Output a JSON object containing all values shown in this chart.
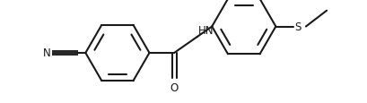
{
  "bg_color": "#ffffff",
  "line_color": "#1a1a1a",
  "lw": 1.5,
  "fs": 8.5,
  "figsize": [
    4.1,
    1.16
  ],
  "dpi": 100,
  "r1cx": 0.285,
  "r1cy": 0.5,
  "r1r": 0.19,
  "r2cx": 0.7,
  "r2cy": 0.46,
  "r2r": 0.19,
  "labels": {
    "N": "N",
    "HN": "HN",
    "O": "O",
    "S": "S"
  }
}
